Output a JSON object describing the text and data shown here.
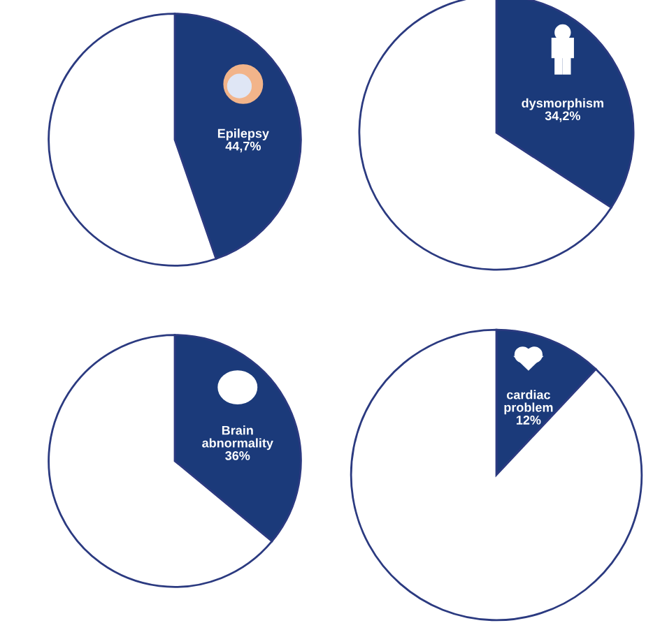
{
  "chart_data": [
    {
      "type": "pie",
      "categories": [
        "Epilepsy",
        null
      ],
      "values": [
        44.7,
        55.3
      ],
      "value_labels": [
        "44,7%",
        null
      ],
      "colors": [
        "#1b3a7a",
        "#ffffff"
      ]
    },
    {
      "type": "pie",
      "categories": [
        "dysmorphism",
        null
      ],
      "values": [
        34.2,
        65.8
      ],
      "value_labels": [
        "34,2%",
        null
      ],
      "colors": [
        "#1b3a7a",
        "#ffffff"
      ]
    },
    {
      "type": "pie",
      "categories": [
        "Brain\nabnormality",
        null
      ],
      "values": [
        36,
        64
      ],
      "value_labels": [
        "36%",
        null
      ],
      "colors": [
        "#1b3a7a",
        "#ffffff"
      ]
    },
    {
      "type": "pie",
      "categories": [
        "cardiac\nproblem",
        null
      ],
      "values": [
        12,
        88
      ],
      "value_labels": [
        "12%",
        null
      ],
      "colors": [
        "#1b3a7a",
        "#ffffff"
      ]
    }
  ]
}
